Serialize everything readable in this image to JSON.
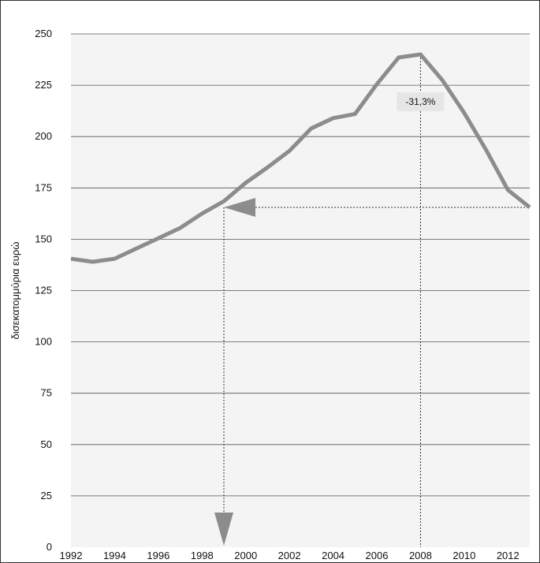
{
  "chart_data": {
    "type": "line",
    "ylabel": "δισεκατομμύρια ευρώ",
    "xlabel": "",
    "ylim": [
      0,
      250
    ],
    "xlim": [
      1992,
      2013
    ],
    "y_ticks": [
      0,
      25,
      50,
      75,
      100,
      125,
      150,
      175,
      200,
      225,
      250
    ],
    "x_ticks": [
      1992,
      1994,
      1996,
      1998,
      2000,
      2002,
      2004,
      2006,
      2008,
      2010,
      2012
    ],
    "x_tick_labels": [
      "1992",
      "1994",
      "1996",
      "1998",
      "2000",
      "2002",
      "2004",
      "2006",
      "2008",
      "2010",
      "2012"
    ],
    "y_tick_labels": [
      "0",
      "25",
      "50",
      "75",
      "100",
      "125",
      "150",
      "175",
      "200",
      "225",
      "250"
    ],
    "grid": "horizontal",
    "series": [
      {
        "x": [
          1992,
          1993,
          1994,
          1995,
          1996,
          1997,
          1998,
          1999,
          2000,
          2001,
          2002,
          2003,
          2004,
          2005,
          2006,
          2007,
          2008,
          2009,
          2010,
          2011,
          2012,
          2013
        ],
        "values": [
          140.5,
          139,
          140.5,
          145.5,
          150.5,
          155.5,
          162.5,
          168.5,
          177.5,
          185,
          193,
          204,
          209,
          211,
          225.5,
          238.5,
          240,
          227.5,
          211.5,
          193.5,
          174,
          165.5
        ]
      }
    ],
    "annotation": {
      "label": "-31,3%",
      "peak_x": 2008,
      "peak_y": 240,
      "level_y": 165.5,
      "cross_x": 1999,
      "end_x": 2013
    },
    "colors": {
      "line": "#8c8c8c",
      "plot_bg": "#f4f4f4",
      "grid": "#555555",
      "arrow": "#8c8c8c"
    }
  }
}
